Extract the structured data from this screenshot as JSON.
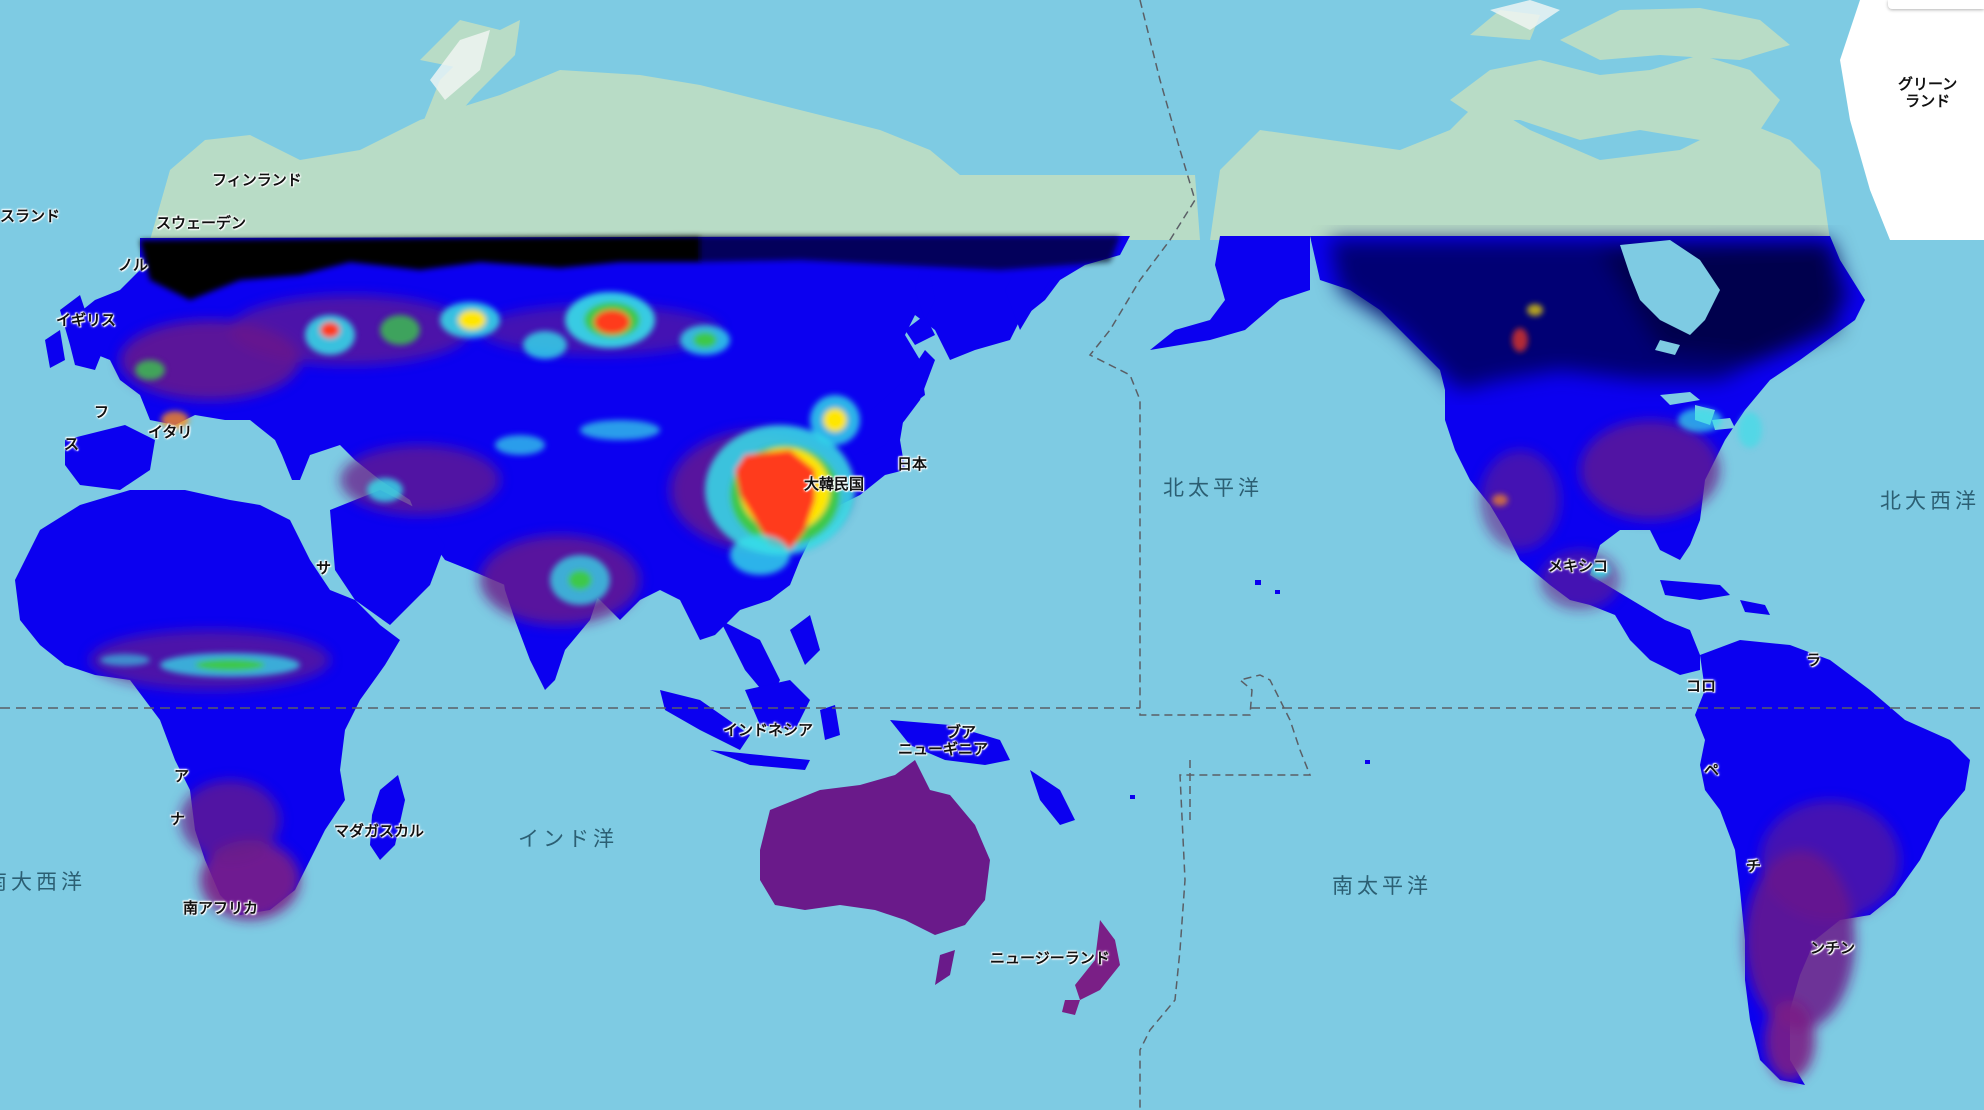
{
  "map": {
    "ocean_color": "#7ecbe3",
    "land_color": "#b8dcc6",
    "ice_color": "#ffffff",
    "overlay_colors": {
      "low": "#0000ee",
      "very_low": "#000066",
      "zero": "#000000",
      "mid_purple": "#6a1a8a",
      "mid_cyan": "#36e0e8",
      "high_green": "#3cc84a",
      "high_yellow": "#ffe600",
      "max_red": "#ff3a1a"
    }
  },
  "labels": {
    "iceland": "スランド",
    "finland": "フィンランド",
    "sweden": "スウェーデン",
    "norway": "ノル",
    "uk": "イギリス",
    "france": "フ",
    "italy": "イタリ",
    "spain": "ス",
    "saudi": "サ",
    "korea": "大韓民国",
    "japan": "日本",
    "indonesia": "インドネシア",
    "png_line1": "ブア",
    "png_line2": "ニューギニア",
    "angola": "ア",
    "namibia": "ナ",
    "madagascar": "マダガスカル",
    "south_africa": "南アフリカ",
    "new_zealand": "ニュージーランド",
    "greenland_line1": "グリーン",
    "greenland_line2": "ランド",
    "mexico": "メキシコ",
    "colombia": "コロ",
    "venezuela": "ラ",
    "peru": "ペ",
    "chile": "チ",
    "argentina": "ンチン"
  },
  "oceans": {
    "north_pacific": "北太平洋",
    "north_atlantic": "北大西洋",
    "indian": "インド洋",
    "south_pacific": "南太平洋",
    "south_atlantic": "南大西洋"
  }
}
